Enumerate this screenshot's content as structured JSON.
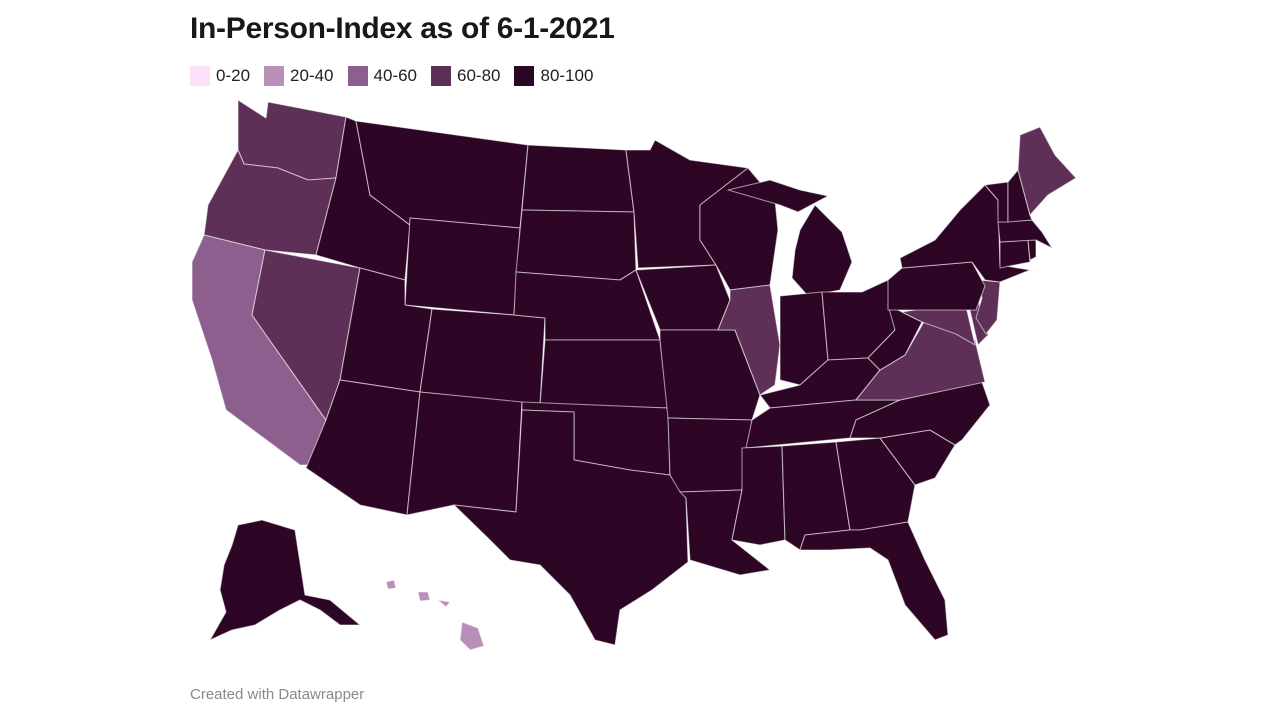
{
  "title": "In-Person-Index as of 6-1-2021",
  "credit": "Created with Datawrapper",
  "legend": [
    {
      "label": "0-20",
      "color": "#fde1fb"
    },
    {
      "label": "20-40",
      "color": "#b98fb8"
    },
    {
      "label": "40-60",
      "color": "#8c5f8e"
    },
    {
      "label": "60-80",
      "color": "#5e2f57"
    },
    {
      "label": "80-100",
      "color": "#2d0625"
    }
  ],
  "map_data": {
    "type": "choropleth",
    "states": [
      {
        "id": "WA",
        "bin": "60-80"
      },
      {
        "id": "OR",
        "bin": "60-80"
      },
      {
        "id": "CA",
        "bin": "40-60"
      },
      {
        "id": "NV",
        "bin": "60-80"
      },
      {
        "id": "ID",
        "bin": "80-100"
      },
      {
        "id": "MT",
        "bin": "80-100"
      },
      {
        "id": "WY",
        "bin": "80-100"
      },
      {
        "id": "UT",
        "bin": "80-100"
      },
      {
        "id": "AZ",
        "bin": "80-100"
      },
      {
        "id": "CO",
        "bin": "80-100"
      },
      {
        "id": "NM",
        "bin": "80-100"
      },
      {
        "id": "ND",
        "bin": "80-100"
      },
      {
        "id": "SD",
        "bin": "80-100"
      },
      {
        "id": "NE",
        "bin": "80-100"
      },
      {
        "id": "KS",
        "bin": "80-100"
      },
      {
        "id": "OK",
        "bin": "80-100"
      },
      {
        "id": "TX",
        "bin": "80-100"
      },
      {
        "id": "MN",
        "bin": "80-100"
      },
      {
        "id": "IA",
        "bin": "80-100"
      },
      {
        "id": "MO",
        "bin": "80-100"
      },
      {
        "id": "AR",
        "bin": "80-100"
      },
      {
        "id": "LA",
        "bin": "80-100"
      },
      {
        "id": "WI",
        "bin": "80-100"
      },
      {
        "id": "IL",
        "bin": "60-80"
      },
      {
        "id": "MI",
        "bin": "80-100"
      },
      {
        "id": "IN",
        "bin": "80-100"
      },
      {
        "id": "OH",
        "bin": "80-100"
      },
      {
        "id": "KY",
        "bin": "80-100"
      },
      {
        "id": "TN",
        "bin": "80-100"
      },
      {
        "id": "MS",
        "bin": "80-100"
      },
      {
        "id": "AL",
        "bin": "80-100"
      },
      {
        "id": "GA",
        "bin": "80-100"
      },
      {
        "id": "FL",
        "bin": "80-100"
      },
      {
        "id": "SC",
        "bin": "80-100"
      },
      {
        "id": "NC",
        "bin": "80-100"
      },
      {
        "id": "VA",
        "bin": "60-80"
      },
      {
        "id": "WV",
        "bin": "80-100"
      },
      {
        "id": "MD",
        "bin": "60-80"
      },
      {
        "id": "DE",
        "bin": "60-80"
      },
      {
        "id": "NJ",
        "bin": "60-80"
      },
      {
        "id": "PA",
        "bin": "80-100"
      },
      {
        "id": "NY",
        "bin": "80-100"
      },
      {
        "id": "CT",
        "bin": "80-100"
      },
      {
        "id": "RI",
        "bin": "80-100"
      },
      {
        "id": "MA",
        "bin": "80-100"
      },
      {
        "id": "VT",
        "bin": "80-100"
      },
      {
        "id": "NH",
        "bin": "80-100"
      },
      {
        "id": "ME",
        "bin": "60-80"
      },
      {
        "id": "AK",
        "bin": "80-100"
      },
      {
        "id": "HI",
        "bin": "20-40"
      }
    ]
  }
}
